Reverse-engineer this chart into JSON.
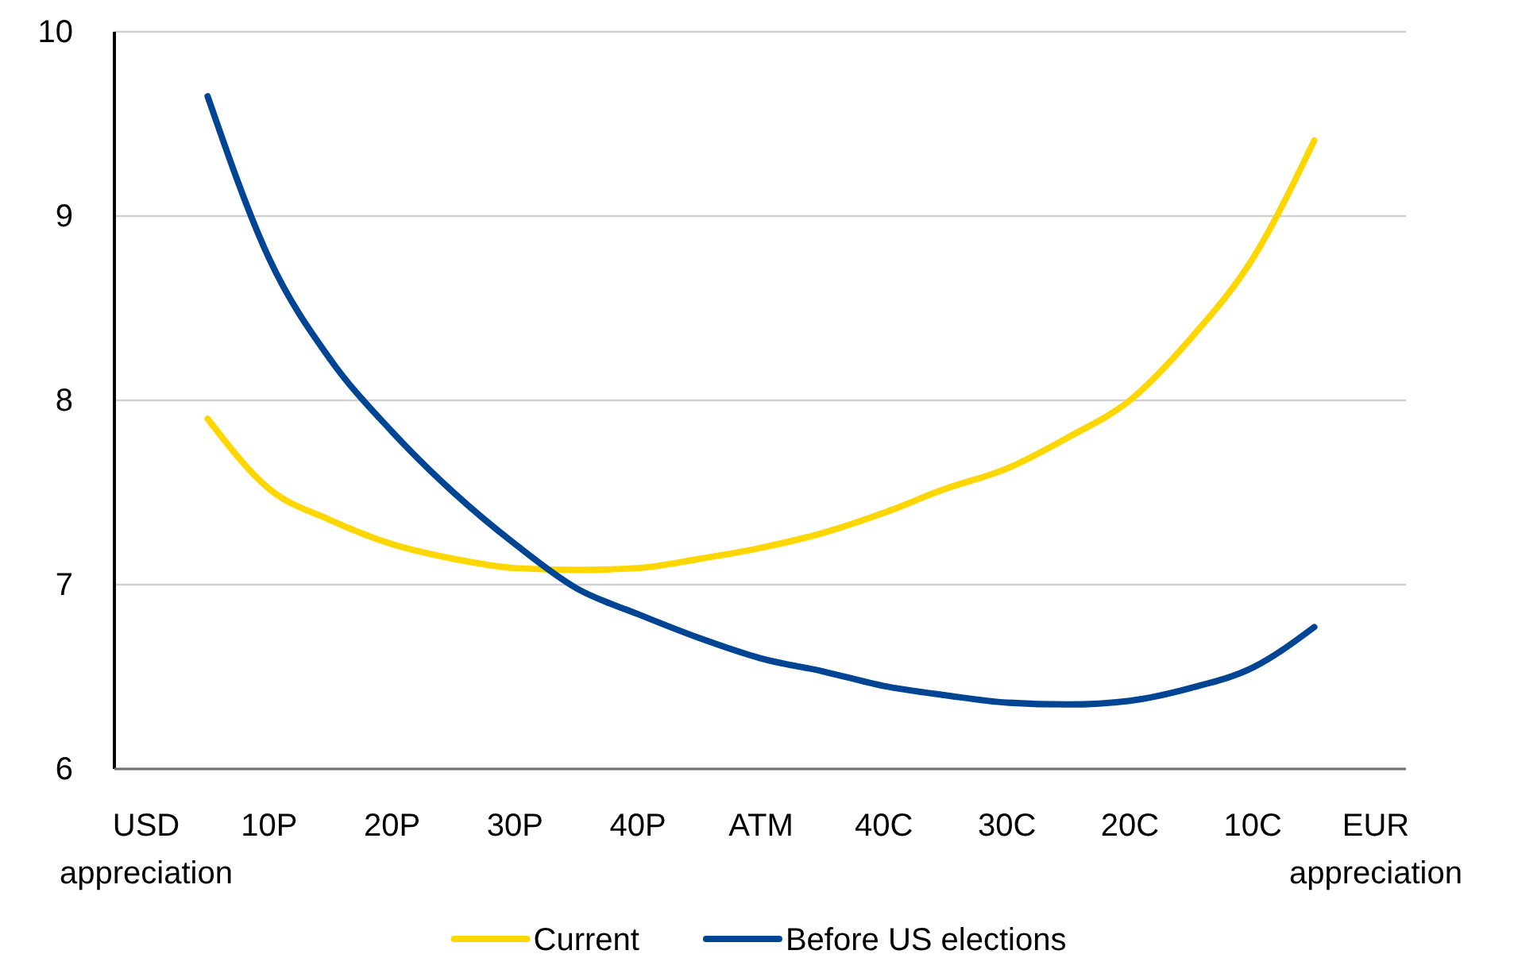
{
  "chart_data": {
    "type": "line",
    "categories": [
      "USD appreciation",
      null,
      "10P",
      null,
      "20P",
      null,
      "30P",
      null,
      "40P",
      null,
      "ATM",
      null,
      "40C",
      null,
      "30C",
      null,
      "20C",
      null,
      "10C",
      null,
      "EUR appreciation"
    ],
    "series": [
      {
        "name": "Current",
        "color": "#ffd700",
        "values": [
          null,
          7.9,
          7.52,
          7.35,
          7.22,
          7.14,
          7.09,
          7.08,
          7.09,
          7.14,
          7.2,
          7.28,
          7.39,
          7.52,
          7.63,
          7.8,
          8.0,
          8.34,
          8.77,
          9.41,
          null
        ]
      },
      {
        "name": "Before US elections",
        "color": "#004494",
        "values": [
          null,
          9.65,
          8.77,
          8.22,
          7.83,
          7.5,
          7.22,
          6.98,
          6.84,
          6.71,
          6.6,
          6.53,
          6.45,
          6.4,
          6.36,
          6.35,
          6.37,
          6.44,
          6.55,
          6.77,
          null
        ]
      }
    ],
    "ylim": [
      6,
      10
    ],
    "yticks": [
      6,
      7,
      8,
      9,
      10
    ],
    "grid": "y",
    "legend": "bottom",
    "marker": "none",
    "line_style": "solid"
  }
}
